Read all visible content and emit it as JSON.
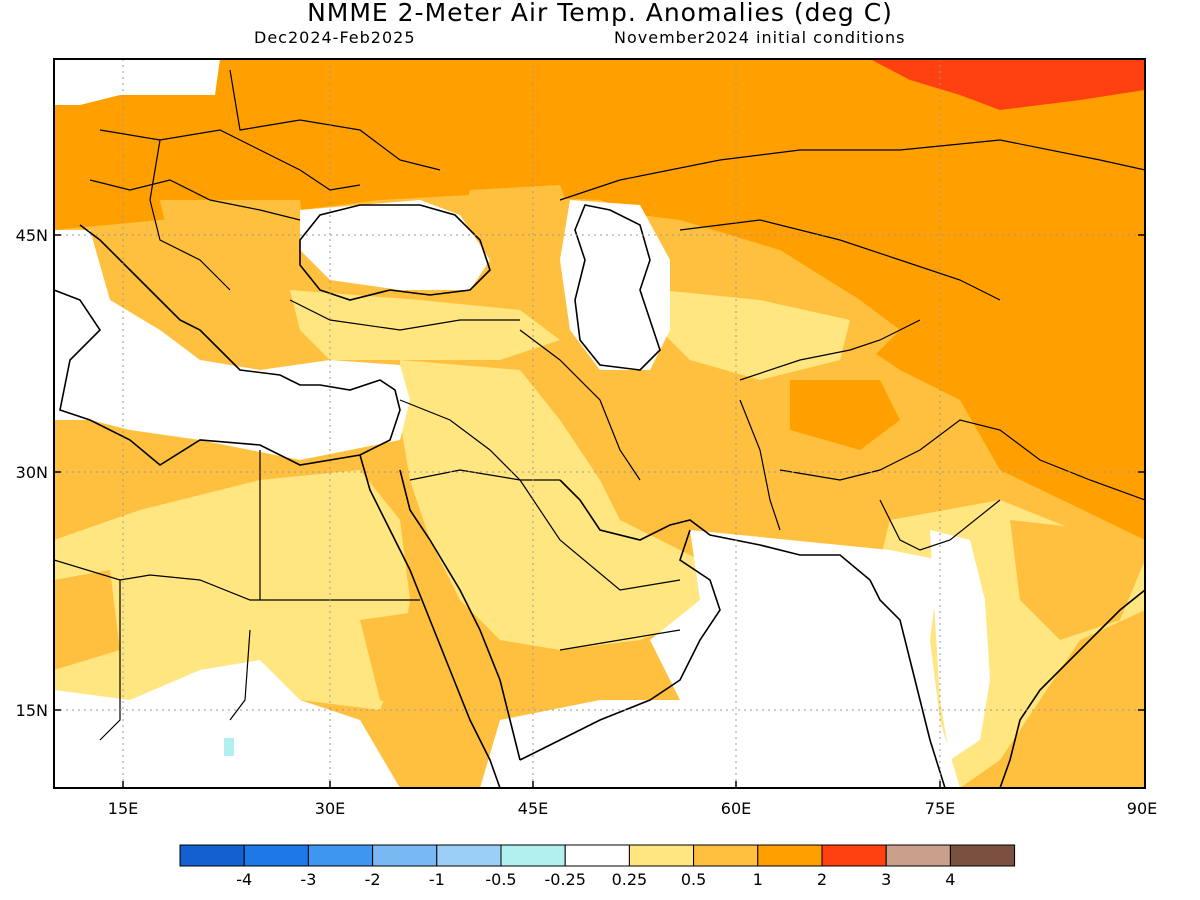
{
  "title": "NMME 2-Meter Air Temp. Anomalies (deg C)",
  "period": "Dec2024-Feb2025",
  "initial_conditions": "November2024 initial conditions",
  "lat_labels": [
    "45N",
    "30N",
    "15N"
  ],
  "lon_labels": [
    "15E",
    "30E",
    "45E",
    "60E",
    "75E",
    "90E"
  ],
  "legend": {
    "colors": [
      "#1560d0",
      "#1f78e8",
      "#3e96f0",
      "#78b8f3",
      "#9ccff8",
      "#b2f0f0",
      "#ffffff",
      "#ffe680",
      "#ffc040",
      "#ffa000",
      "#ff4010",
      "#c9a08c",
      "#7a5040"
    ],
    "labels": [
      "-4",
      "-3",
      "-2",
      "-1",
      "-0.5",
      "-0.25",
      "0.25",
      "0.5",
      "1",
      "2",
      "3",
      "4"
    ]
  },
  "colors": {
    "orange": "#ffa000",
    "light_orange": "#ffc040",
    "yellow": "#ffe680",
    "red": "#ff4010",
    "cyan": "#b2f0f0",
    "white": "#ffffff"
  }
}
